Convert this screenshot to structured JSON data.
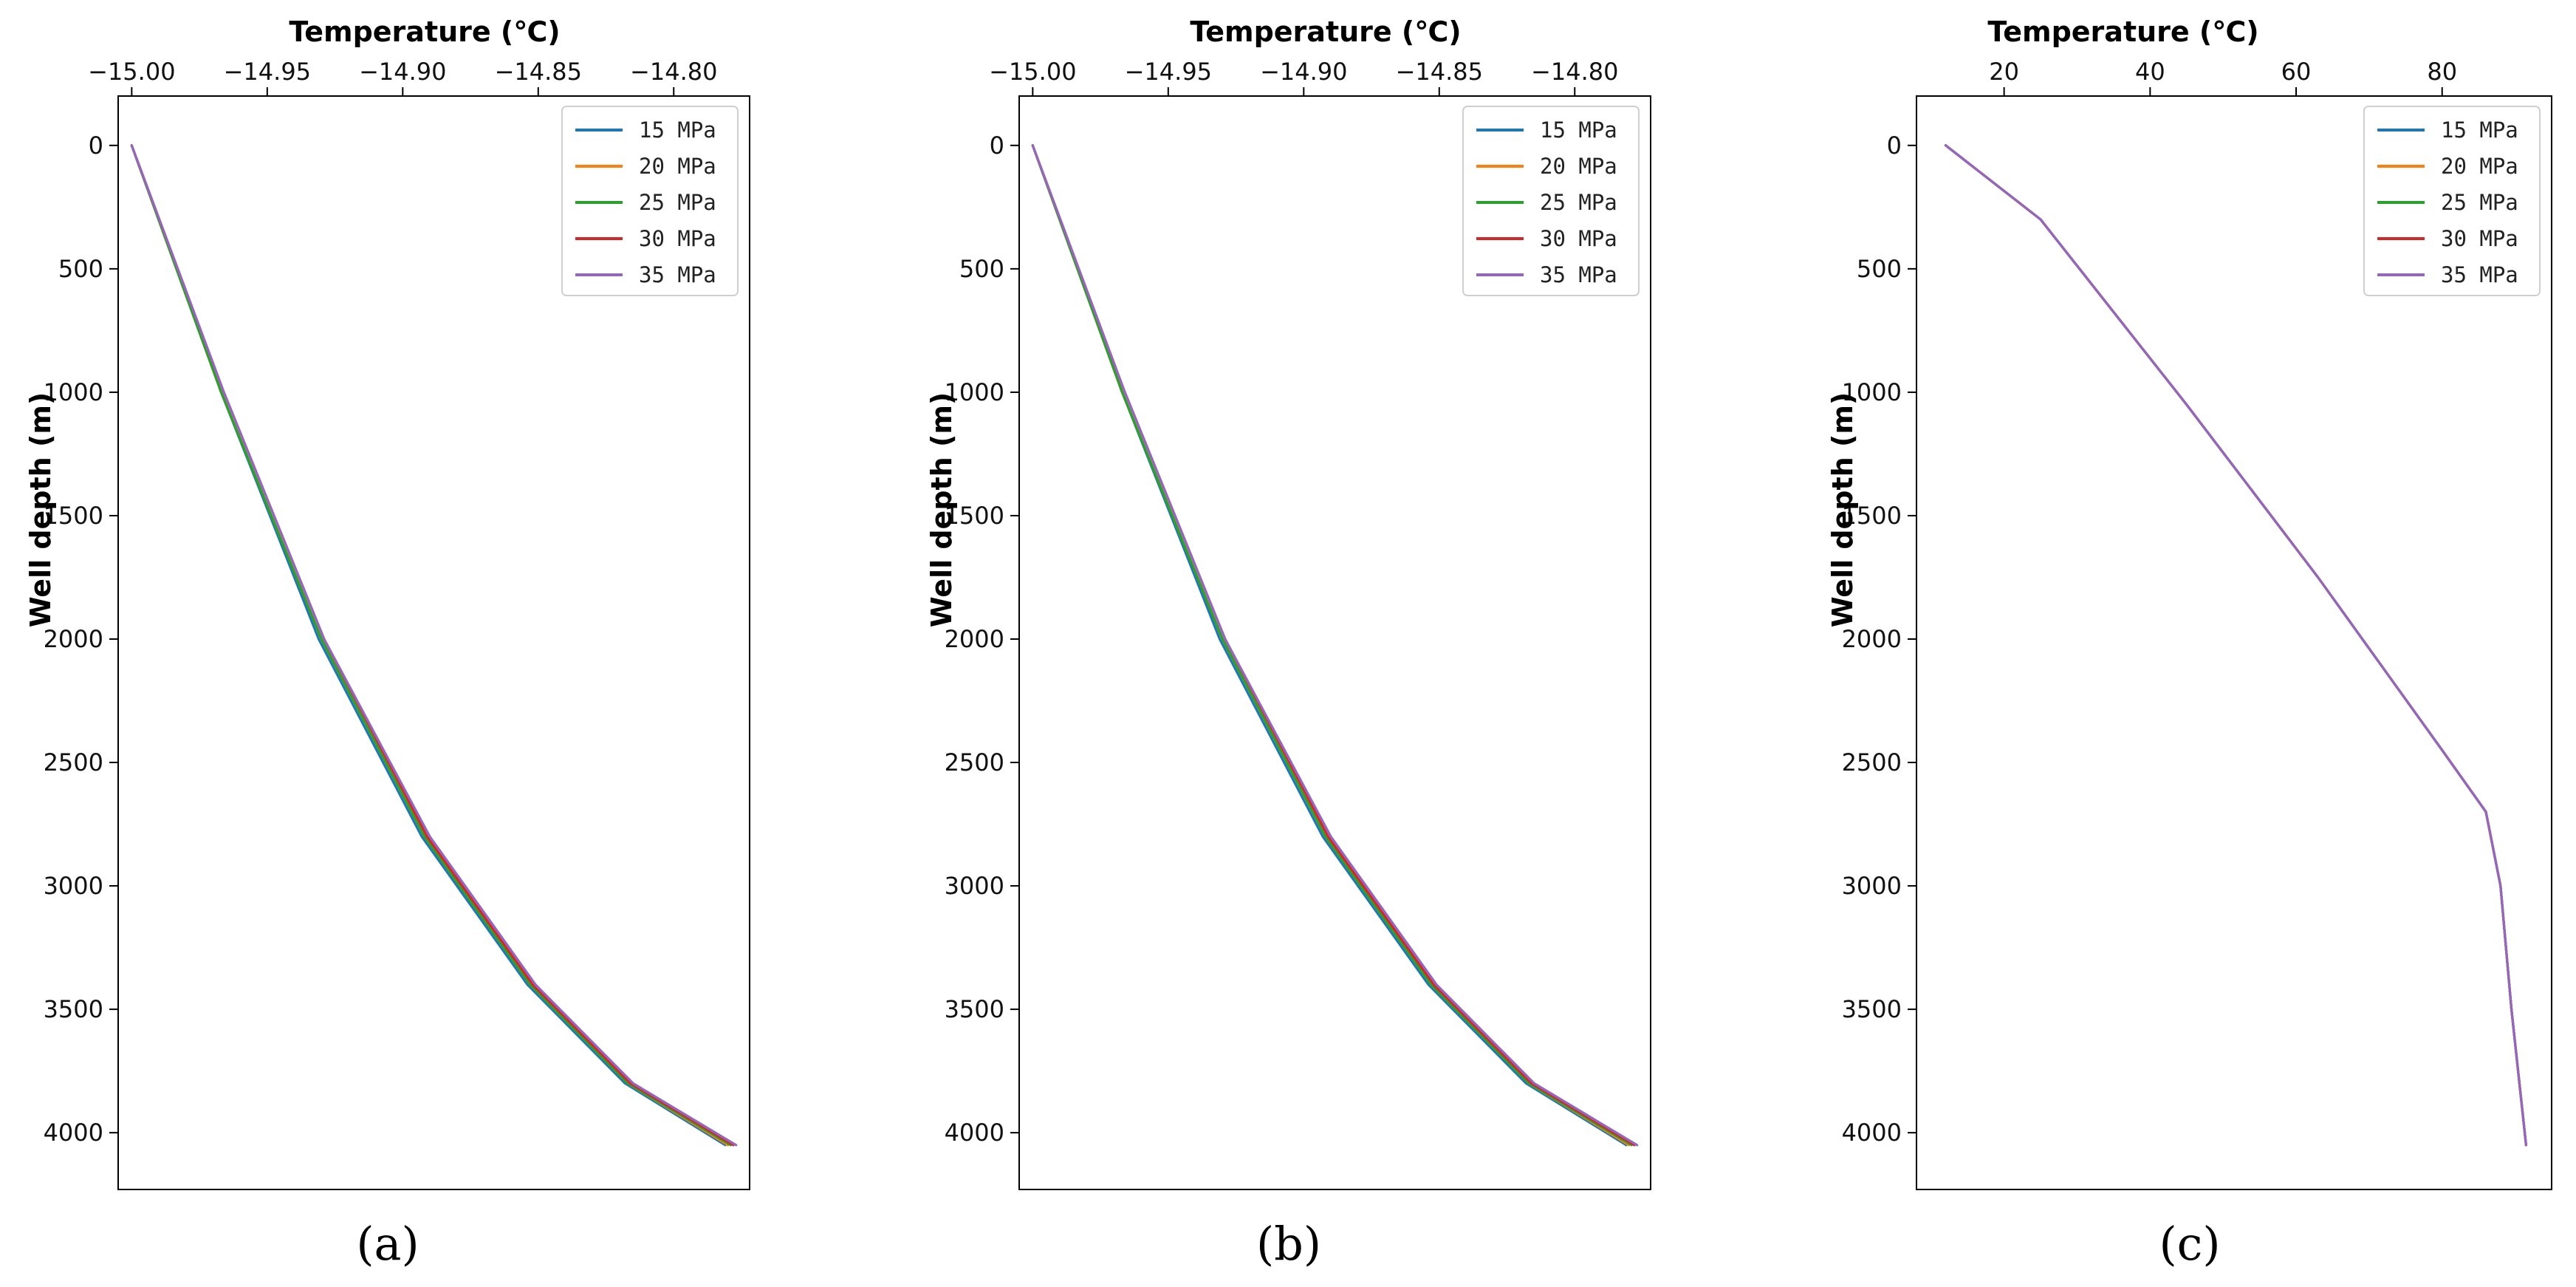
{
  "chart_data": [
    {
      "type": "line",
      "panel_label": "(a)",
      "title": "Temperature (℃)",
      "xlabel": "Temperature (℃)",
      "ylabel": "Well depth (m)",
      "xaxis_position": "top",
      "yaxis_inverted": true,
      "xlim": [
        -15.005,
        -14.772
      ],
      "ylim": [
        4230,
        -200
      ],
      "xticks": [
        -15.0,
        -14.95,
        -14.9,
        -14.85,
        -14.8
      ],
      "xtick_labels": [
        "−15.00",
        "−14.95",
        "−14.90",
        "−14.85",
        "−14.80"
      ],
      "yticks": [
        0,
        500,
        1000,
        1500,
        2000,
        2500,
        3000,
        3500,
        4000
      ],
      "ytick_labels": [
        "0",
        "500",
        "1000",
        "1500",
        "2000",
        "2500",
        "3000",
        "3500",
        "4000"
      ],
      "legend_position": "top-right",
      "series": [
        {
          "name": "15 MPa",
          "color": "#1f77b4",
          "x": [
            -15.0,
            -14.967,
            -14.931,
            -14.893,
            -14.854,
            -14.818,
            -14.781
          ],
          "y": [
            0,
            1000,
            2000,
            2800,
            3400,
            3800,
            4050
          ]
        },
        {
          "name": "20 MPa",
          "color": "#ff7f0e",
          "x": [
            -15.0,
            -14.967,
            -14.93,
            -14.892,
            -14.853,
            -14.817,
            -14.78
          ],
          "y": [
            0,
            1000,
            2000,
            2800,
            3400,
            3800,
            4050
          ]
        },
        {
          "name": "25 MPa",
          "color": "#2ca02c",
          "x": [
            -15.0,
            -14.967,
            -14.93,
            -14.892,
            -14.853,
            -14.817,
            -14.779
          ],
          "y": [
            0,
            1000,
            2000,
            2800,
            3400,
            3800,
            4050
          ]
        },
        {
          "name": "30 MPa",
          "color": "#d62728",
          "x": [
            -15.0,
            -14.966,
            -14.929,
            -14.891,
            -14.852,
            -14.816,
            -14.778
          ],
          "y": [
            0,
            1000,
            2000,
            2800,
            3400,
            3800,
            4050
          ]
        },
        {
          "name": "35 MPa",
          "color": "#9467bd",
          "x": [
            -15.0,
            -14.966,
            -14.929,
            -14.89,
            -14.851,
            -14.815,
            -14.777
          ],
          "y": [
            0,
            1000,
            2000,
            2800,
            3400,
            3800,
            4050
          ]
        }
      ]
    },
    {
      "type": "line",
      "panel_label": "(b)",
      "title": "Temperature (℃)",
      "xlabel": "Temperature (℃)",
      "ylabel": "Well depth (m)",
      "xaxis_position": "top",
      "yaxis_inverted": true,
      "xlim": [
        -15.005,
        -14.772
      ],
      "ylim": [
        4230,
        -200
      ],
      "xticks": [
        -15.0,
        -14.95,
        -14.9,
        -14.85,
        -14.8
      ],
      "xtick_labels": [
        "−15.00",
        "−14.95",
        "−14.90",
        "−14.85",
        "−14.80"
      ],
      "yticks": [
        0,
        500,
        1000,
        1500,
        2000,
        2500,
        3000,
        3500,
        4000
      ],
      "ytick_labels": [
        "0",
        "500",
        "1000",
        "1500",
        "2000",
        "2500",
        "3000",
        "3500",
        "4000"
      ],
      "legend_position": "top-right",
      "series": [
        {
          "name": "15 MPa",
          "color": "#1f77b4",
          "x": [
            -15.0,
            -14.967,
            -14.931,
            -14.893,
            -14.854,
            -14.818,
            -14.781
          ],
          "y": [
            0,
            1000,
            2000,
            2800,
            3400,
            3800,
            4050
          ]
        },
        {
          "name": "20 MPa",
          "color": "#ff7f0e",
          "x": [
            -15.0,
            -14.967,
            -14.93,
            -14.892,
            -14.853,
            -14.817,
            -14.78
          ],
          "y": [
            0,
            1000,
            2000,
            2800,
            3400,
            3800,
            4050
          ]
        },
        {
          "name": "25 MPa",
          "color": "#2ca02c",
          "x": [
            -15.0,
            -14.967,
            -14.93,
            -14.892,
            -14.853,
            -14.817,
            -14.779
          ],
          "y": [
            0,
            1000,
            2000,
            2800,
            3400,
            3800,
            4050
          ]
        },
        {
          "name": "30 MPa",
          "color": "#d62728",
          "x": [
            -15.0,
            -14.966,
            -14.929,
            -14.891,
            -14.852,
            -14.816,
            -14.778
          ],
          "y": [
            0,
            1000,
            2000,
            2800,
            3400,
            3800,
            4050
          ]
        },
        {
          "name": "35 MPa",
          "color": "#9467bd",
          "x": [
            -15.0,
            -14.966,
            -14.929,
            -14.89,
            -14.851,
            -14.815,
            -14.777
          ],
          "y": [
            0,
            1000,
            2000,
            2800,
            3400,
            3800,
            4050
          ]
        }
      ]
    },
    {
      "type": "line",
      "panel_label": "(c)",
      "title": "Temperature (℃)",
      "xlabel": "Temperature (℃)",
      "ylabel": "Well depth (m)",
      "xaxis_position": "top",
      "yaxis_inverted": true,
      "xlim": [
        8,
        95
      ],
      "ylim": [
        4230,
        -200
      ],
      "xticks": [
        20,
        40,
        60,
        80
      ],
      "xtick_labels": [
        "20",
        "40",
        "60",
        "80"
      ],
      "yticks": [
        0,
        500,
        1000,
        1500,
        2000,
        2500,
        3000,
        3500,
        4000
      ],
      "ytick_labels": [
        "0",
        "500",
        "1000",
        "1500",
        "2000",
        "2500",
        "3000",
        "3500",
        "4000"
      ],
      "legend_position": "top-right",
      "series": [
        {
          "name": "15 MPa",
          "color": "#1f77b4",
          "x": [
            12,
            25,
            45,
            63,
            80,
            86,
            88,
            89.5,
            91.5
          ],
          "y": [
            0,
            300,
            1050,
            1750,
            2450,
            2700,
            3000,
            3500,
            4050
          ]
        },
        {
          "name": "20 MPa",
          "color": "#ff7f0e",
          "x": [
            12,
            25,
            45,
            63,
            80,
            86,
            88,
            89.5,
            91.5
          ],
          "y": [
            0,
            300,
            1050,
            1750,
            2450,
            2700,
            3000,
            3500,
            4050
          ]
        },
        {
          "name": "25 MPa",
          "color": "#2ca02c",
          "x": [
            12,
            25,
            45,
            63,
            80,
            86,
            88,
            89.5,
            91.5
          ],
          "y": [
            0,
            300,
            1050,
            1750,
            2450,
            2700,
            3000,
            3500,
            4050
          ]
        },
        {
          "name": "30 MPa",
          "color": "#d62728",
          "x": [
            12,
            25,
            45,
            63,
            80,
            86,
            88,
            89.5,
            91.5
          ],
          "y": [
            0,
            300,
            1050,
            1750,
            2450,
            2700,
            3000,
            3500,
            4050
          ]
        },
        {
          "name": "35 MPa",
          "color": "#9467bd",
          "x": [
            12,
            25,
            45,
            63,
            80,
            86,
            88,
            89.5,
            91.5
          ],
          "y": [
            0,
            300,
            1050,
            1750,
            2450,
            2700,
            3000,
            3500,
            4050
          ]
        }
      ]
    }
  ]
}
